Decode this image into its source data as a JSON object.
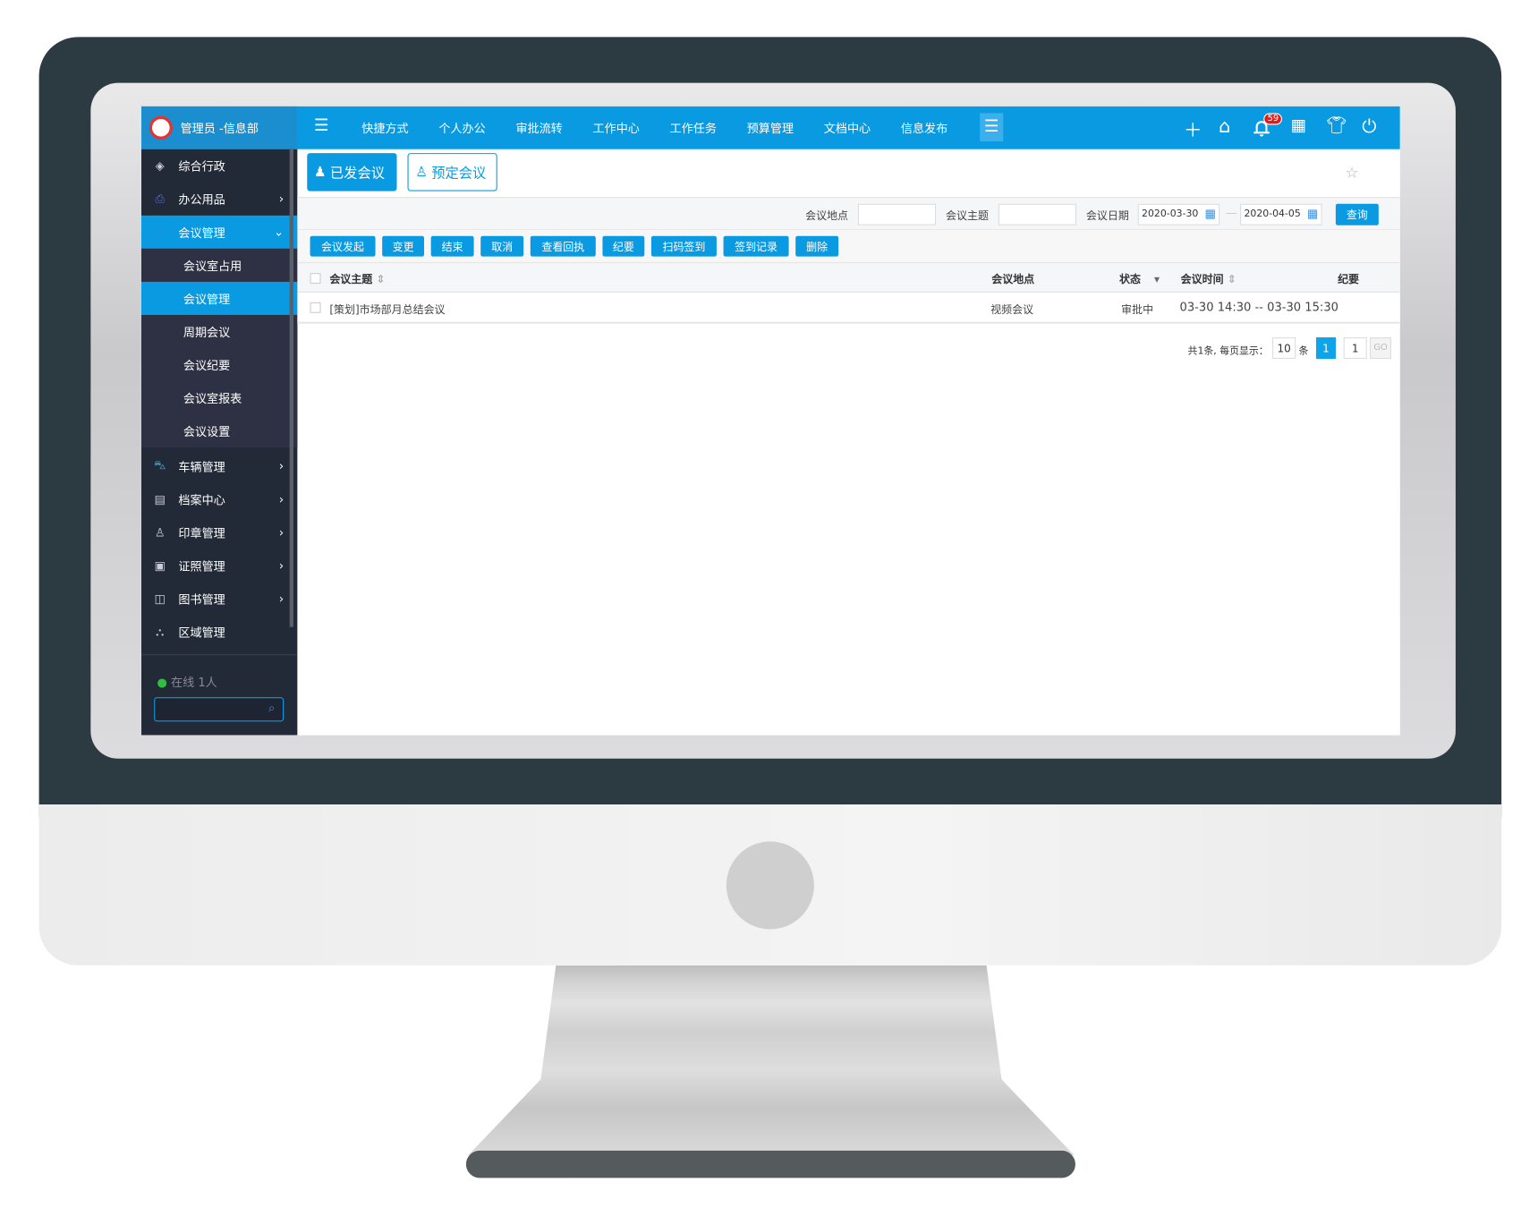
{
  "header": {
    "brand": "管理员 -信息部",
    "nav": [
      "快捷方式",
      "个人办公",
      "审批流转",
      "工作中心",
      "工作任务",
      "预算管理",
      "文档中心",
      "信息发布"
    ],
    "notification_count": "59"
  },
  "sidebar": {
    "items": [
      {
        "label": "综合行政",
        "icon": "layers-icon"
      },
      {
        "label": "办公用品",
        "icon": "printer-icon"
      },
      {
        "label": "会议管理",
        "icon": "meeting-icon",
        "expanded": true
      },
      {
        "label": "会议室占用",
        "sub": true
      },
      {
        "label": "会议管理",
        "sub": true,
        "active": true
      },
      {
        "label": "周期会议",
        "sub": true
      },
      {
        "label": "会议纪要",
        "sub": true
      },
      {
        "label": "会议室报表",
        "sub": true
      },
      {
        "label": "会议设置",
        "sub": true
      },
      {
        "label": "车辆管理",
        "icon": "car-icon"
      },
      {
        "label": "档案中心",
        "icon": "archive-icon"
      },
      {
        "label": "印章管理",
        "icon": "stamp-icon"
      },
      {
        "label": "证照管理",
        "icon": "certificate-icon"
      },
      {
        "label": "图书管理",
        "icon": "book-icon"
      },
      {
        "label": "区域管理",
        "icon": "area-icon"
      }
    ],
    "online": "在线 1人"
  },
  "tabs": {
    "sent": "已发会议",
    "book": "预定会议"
  },
  "filters": {
    "location_label": "会议地点",
    "location": "",
    "subject_label": "会议主题",
    "subject": "",
    "date_label": "会议日期",
    "date_from": "2020-03-30",
    "date_to": "2020-04-05",
    "search": "查询"
  },
  "actions": [
    "会议发起",
    "变更",
    "结束",
    "取消",
    "查看回执",
    "纪要",
    "扫码签到",
    "签到记录",
    "删除"
  ],
  "table": {
    "headers": [
      "会议主题",
      "会议地点",
      "状态",
      "会议时间",
      "纪要"
    ],
    "rows": [
      [
        "[策划]市场部月总结会议",
        "视频会议",
        "审批中",
        "03-30 14:30 -- 03-30 15:30",
        ""
      ]
    ]
  },
  "pagination": {
    "summary": "共1条, 每页显示：",
    "page_size": "10",
    "unit": "条",
    "current": "1",
    "goto": "1",
    "go": "GO"
  },
  "colors": {
    "primary": "#0a9ae2",
    "sidebar": "#232a37"
  }
}
